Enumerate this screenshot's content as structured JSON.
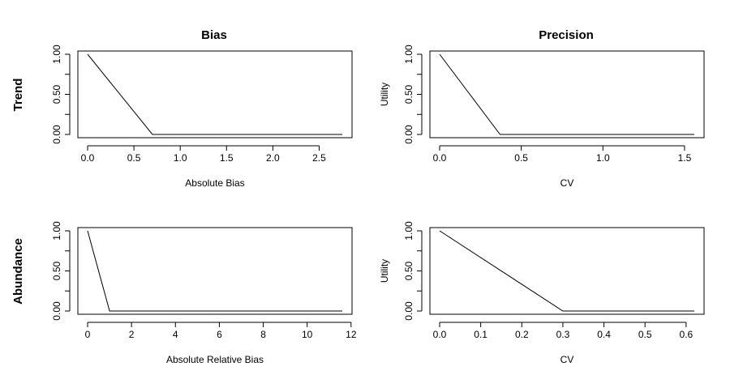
{
  "figure": {
    "column_titles": [
      "Bias",
      "Precision"
    ],
    "row_titles": [
      "Trend",
      "Abundance"
    ]
  },
  "chart_data": [
    {
      "type": "line",
      "title": "",
      "xlabel": "Absolute Bias",
      "ylabel": "",
      "xlim": [
        0,
        2.75
      ],
      "ylim": [
        0,
        1
      ],
      "xticks": [
        0,
        0.5,
        1,
        1.5,
        2,
        2.5
      ],
      "xtick_labels": [
        "0.0",
        "0.5",
        "1.0",
        "1.5",
        "2.0",
        "2.5"
      ],
      "yticks": [
        0,
        0.5,
        1
      ],
      "ytick_labels": [
        "0.00",
        "0.50",
        "1.00"
      ],
      "series": [
        {
          "x": [
            0,
            0.7,
            2.75
          ],
          "y": [
            1,
            0,
            0
          ]
        }
      ]
    },
    {
      "type": "line",
      "title": "",
      "xlabel": "CV",
      "ylabel": "Utility",
      "xlim": [
        0,
        1.56
      ],
      "ylim": [
        0,
        1
      ],
      "xticks": [
        0,
        0.5,
        1,
        1.5
      ],
      "xtick_labels": [
        "0.0",
        "0.5",
        "1.0",
        "1.5"
      ],
      "yticks": [
        0,
        0.5,
        1
      ],
      "ytick_labels": [
        "0.00",
        "0.50",
        "1.00"
      ],
      "series": [
        {
          "x": [
            0,
            0.37,
            1.56
          ],
          "y": [
            1,
            0,
            0
          ]
        }
      ]
    },
    {
      "type": "line",
      "title": "",
      "xlabel": "Absolute Relative Bias",
      "ylabel": "",
      "xlim": [
        0,
        11.6
      ],
      "ylim": [
        0,
        1
      ],
      "xticks": [
        0,
        2,
        4,
        6,
        8,
        10,
        12
      ],
      "xtick_labels": [
        "0",
        "2",
        "4",
        "6",
        "8",
        "10",
        "12"
      ],
      "yticks": [
        0,
        0.5,
        1
      ],
      "ytick_labels": [
        "0.00",
        "0.50",
        "1.00"
      ],
      "series": [
        {
          "x": [
            0,
            1,
            11.6
          ],
          "y": [
            1,
            0,
            0
          ]
        }
      ]
    },
    {
      "type": "line",
      "title": "",
      "xlabel": "CV",
      "ylabel": "Utility",
      "xlim": [
        0,
        0.62
      ],
      "ylim": [
        0,
        1
      ],
      "xticks": [
        0,
        0.1,
        0.2,
        0.3,
        0.4,
        0.5,
        0.6
      ],
      "xtick_labels": [
        "0.0",
        "0.1",
        "0.2",
        "0.3",
        "0.4",
        "0.5",
        "0.6"
      ],
      "yticks": [
        0,
        0.5,
        1
      ],
      "ytick_labels": [
        "0.00",
        "0.50",
        "1.00"
      ],
      "series": [
        {
          "x": [
            0,
            0.3,
            0.62
          ],
          "y": [
            1,
            0,
            0
          ]
        }
      ]
    }
  ]
}
